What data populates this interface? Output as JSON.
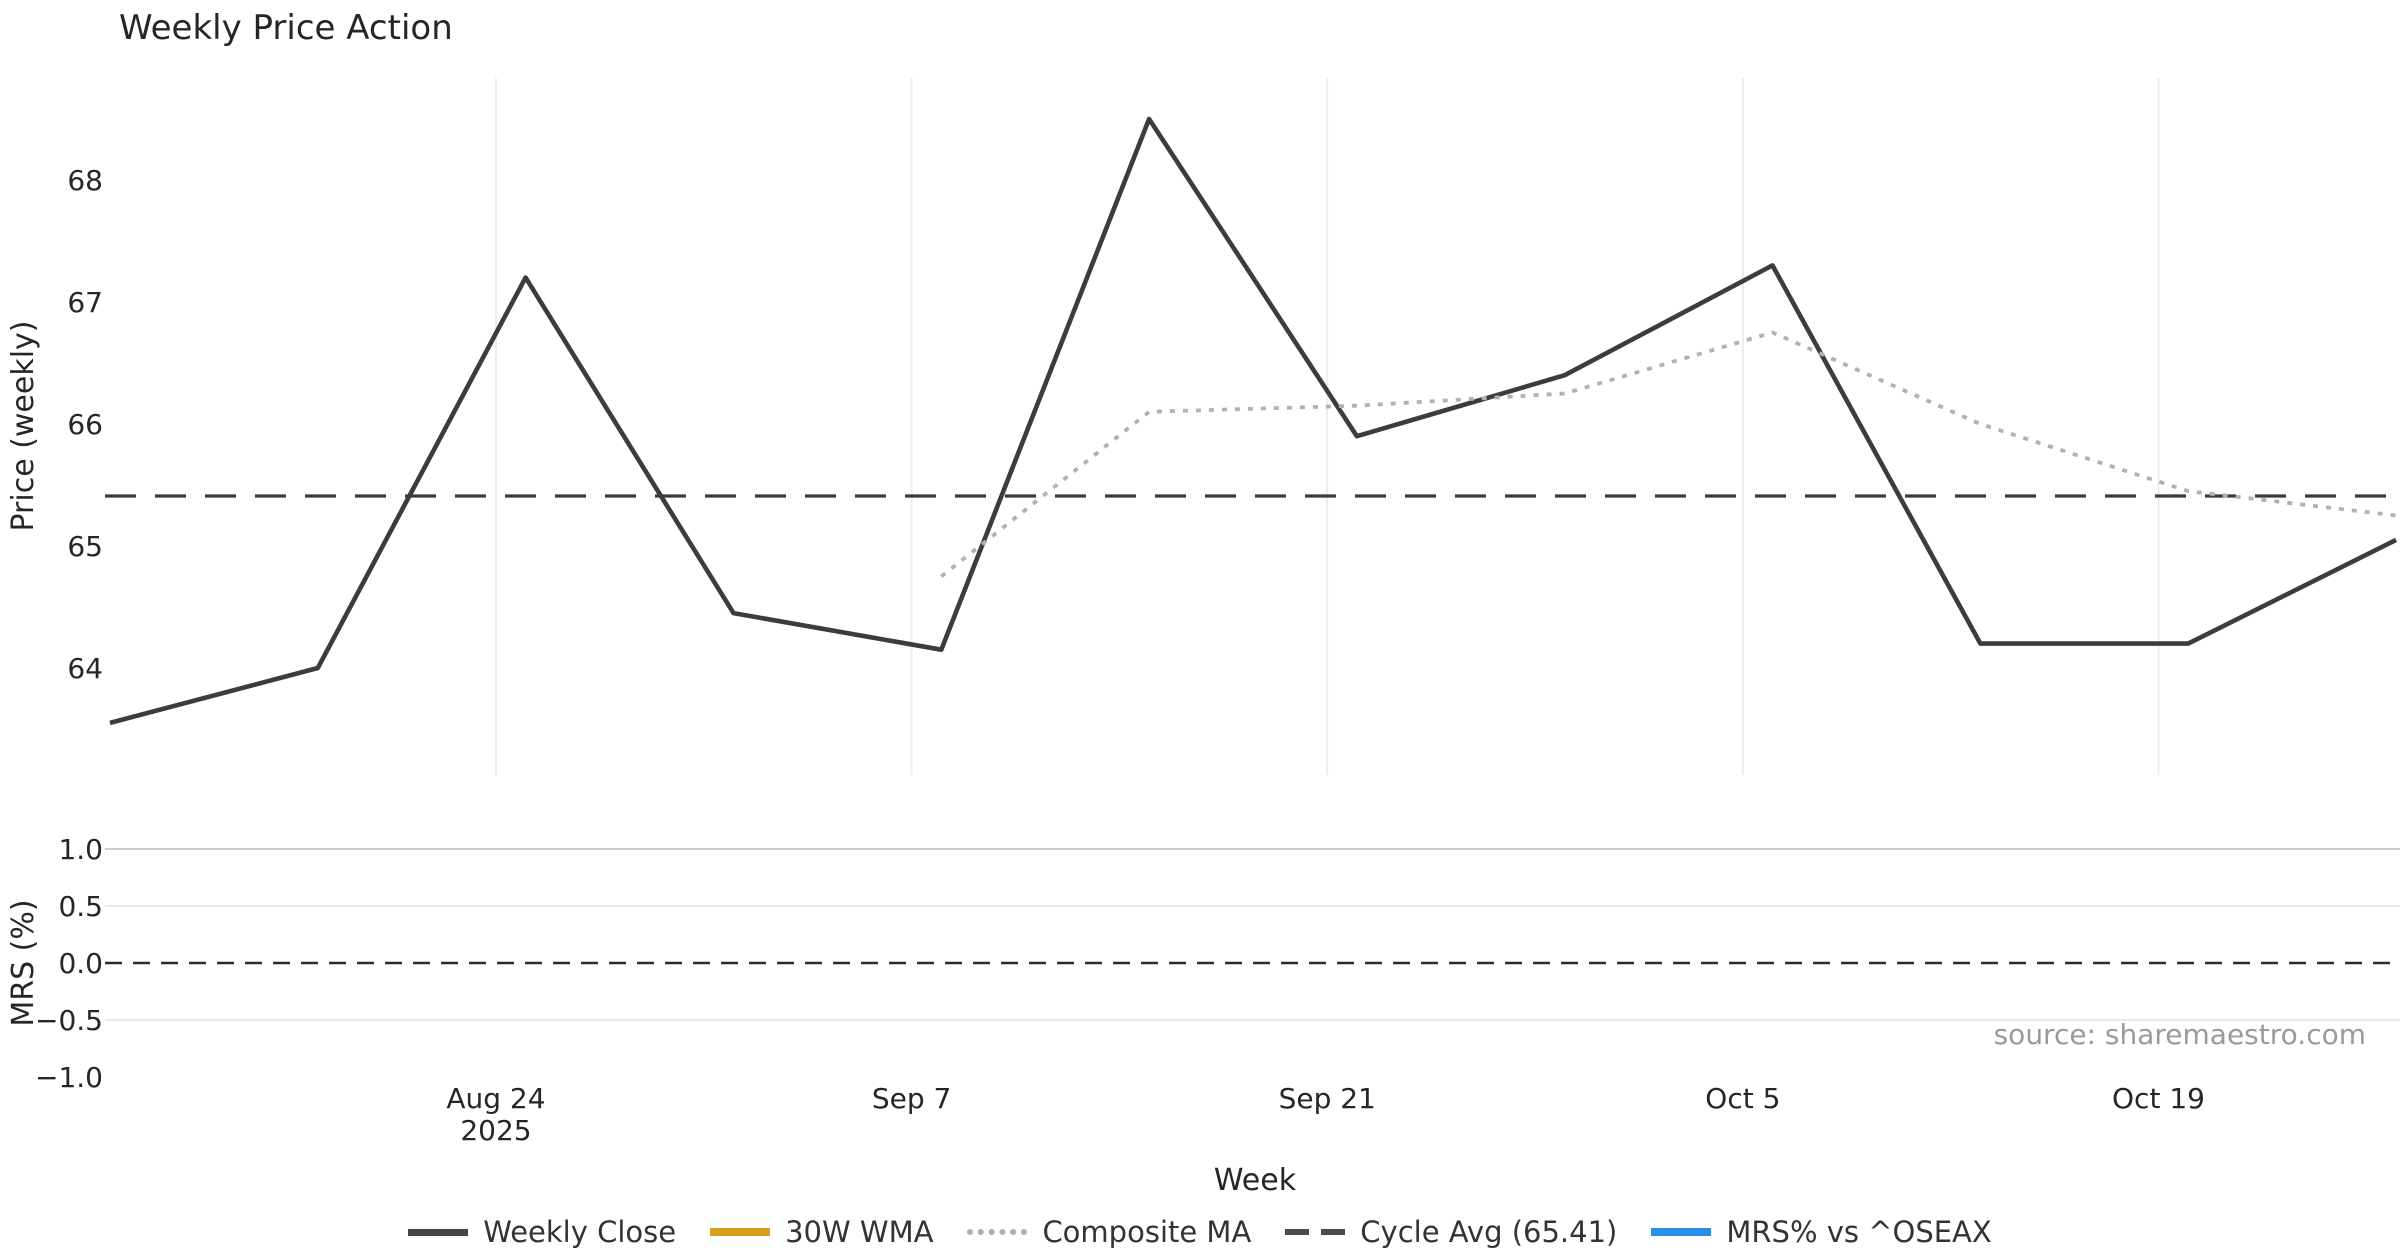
{
  "title": "Weekly Price Action",
  "source": "source: sharemaestro.com",
  "axes": {
    "price_label": "Price (weekly)",
    "mrs_label": "MRS (%)",
    "x_label": "Week"
  },
  "colors": {
    "weekly_close": "#3c3c3c",
    "wma_30w": "#d4a017",
    "composite_ma": "#b1b1b1",
    "cycle_avg": "#3a3a3a",
    "mrs_blue": "#2a8fe8",
    "zero_line": "#2b2b2b",
    "grid_vertical": "#e9eef4",
    "grid_strong": "#c9cdd1",
    "grid_light": "#e9e9e9",
    "text": "#262626",
    "muted_text": "#9a9a9a"
  },
  "chart_data": {
    "type": "line",
    "title": "Weekly Price Action",
    "x": [
      "2025-08-11",
      "2025-08-18",
      "2025-08-25",
      "2025-09-01",
      "2025-09-08",
      "2025-09-15",
      "2025-09-22",
      "2025-09-29",
      "2025-10-06",
      "2025-10-13",
      "2025-10-20",
      "2025-10-27"
    ],
    "series": [
      {
        "name": "Weekly Close",
        "panel": "price",
        "style": "solid-dark",
        "values": [
          63.55,
          64.0,
          67.2,
          64.45,
          64.15,
          68.5,
          65.9,
          66.4,
          67.3,
          64.2,
          64.2,
          65.05
        ]
      },
      {
        "name": "Composite MA",
        "panel": "price",
        "style": "dotted-gray",
        "values": [
          null,
          null,
          null,
          null,
          64.75,
          66.1,
          66.15,
          66.25,
          66.75,
          66.0,
          65.45,
          65.25
        ]
      }
    ],
    "cycle_avg": 65.41,
    "price_axis": {
      "label": "Price (weekly)",
      "ticks": [
        68,
        67,
        66,
        65,
        64
      ],
      "range": [
        63.15,
        68.85
      ],
      "grid": "vertical-only"
    },
    "mrs_axis": {
      "label": "MRS (%)",
      "tick_labels": [
        "1.0",
        "0.5",
        "0.0",
        "−0.5",
        "−1.0"
      ],
      "tick_values": [
        1.0,
        0.5,
        0.0,
        -0.5,
        -1.0
      ],
      "range": [
        -1.08,
        1.08
      ],
      "zero_line_dashed": true,
      "grid": "horizontal-only"
    },
    "x_axis": {
      "label": "Week",
      "ticks": [
        {
          "label": "Aug 24",
          "sublabel": "2025",
          "date": "2025-08-24"
        },
        {
          "label": "Sep 7",
          "sublabel": "",
          "date": "2025-09-07"
        },
        {
          "label": "Sep 21",
          "sublabel": "",
          "date": "2025-09-21"
        },
        {
          "label": "Oct 5",
          "sublabel": "",
          "date": "2025-10-05"
        },
        {
          "label": "Oct 19",
          "sublabel": "",
          "date": "2025-10-19"
        }
      ]
    },
    "legend": [
      {
        "label": "Weekly Close",
        "style": "solid-dark"
      },
      {
        "label": "30W WMA",
        "style": "solid-gold"
      },
      {
        "label": "Composite MA",
        "style": "dotted-gray"
      },
      {
        "label": "Cycle Avg (65.41)",
        "style": "dashed-dark"
      },
      {
        "label": "MRS% vs ^OSEAX",
        "style": "solid-blue"
      }
    ],
    "legend_position": "bottom-center"
  }
}
